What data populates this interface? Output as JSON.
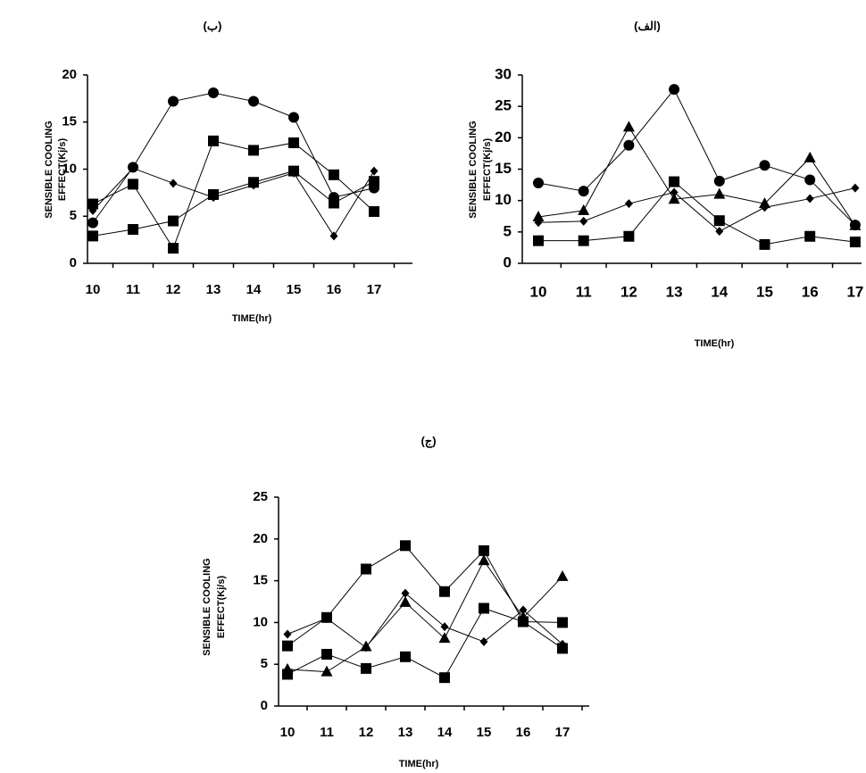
{
  "chart_data": [
    {
      "type": "line",
      "title": "(ب)",
      "ylabel": [
        "SENSIBLE COOLING",
        "EFFECT(Kj/s)"
      ],
      "xlabel": "TIME(hr)",
      "categories": [
        "10",
        "11",
        "12",
        "13",
        "14",
        "15",
        "16",
        "17"
      ],
      "ylim": [
        0,
        20
      ],
      "yticks": [
        0,
        5,
        10,
        15,
        20
      ],
      "series": [
        {
          "marker": "circle",
          "color": "#000000",
          "values": [
            4.3,
            10.2,
            17.2,
            18.1,
            17.2,
            15.5,
            7.0,
            8.0
          ]
        },
        {
          "marker": "square",
          "color": "#000000",
          "values": [
            6.3,
            8.4,
            1.6,
            13.0,
            12.0,
            12.8,
            9.4,
            5.5
          ]
        },
        {
          "marker": "diamond",
          "color": "#000000",
          "values": [
            5.6,
            10.1,
            8.5,
            7.0,
            8.3,
            9.6,
            2.9,
            9.8
          ]
        },
        {
          "marker": "square",
          "color": "#000000",
          "values": [
            2.9,
            3.6,
            4.5,
            7.3,
            8.6,
            9.8,
            6.4,
            8.7
          ]
        }
      ]
    },
    {
      "type": "line",
      "title": "(الف)",
      "ylabel": [
        "SENSIBLE COOLING",
        "EFFECT(Kj/s)"
      ],
      "xlabel": "TIME(hr)",
      "categories": [
        "10",
        "11",
        "12",
        "13",
        "14",
        "15",
        "16",
        "17"
      ],
      "ylim": [
        0,
        30
      ],
      "yticks": [
        0,
        5,
        10,
        15,
        20,
        25,
        30
      ],
      "series": [
        {
          "marker": "circle",
          "color": "#000000",
          "values": [
            12.8,
            11.5,
            18.8,
            27.7,
            13.1,
            15.6,
            13.3,
            6.1
          ]
        },
        {
          "marker": "triangle",
          "color": "#000000",
          "values": [
            7.4,
            8.4,
            21.7,
            10.2,
            11.0,
            9.5,
            16.8,
            6.0
          ]
        },
        {
          "marker": "diamond",
          "color": "#000000",
          "values": [
            6.5,
            6.7,
            9.5,
            11.3,
            5.1,
            8.9,
            10.3,
            12.0
          ]
        },
        {
          "marker": "square",
          "color": "#000000",
          "values": [
            3.6,
            3.6,
            4.3,
            13.0,
            6.8,
            3.0,
            4.3,
            3.4
          ]
        }
      ]
    },
    {
      "type": "line",
      "title": "(ج)",
      "ylabel": [
        "SENSIBLE COOLING",
        "EFFECT(Kj/s)"
      ],
      "xlabel": "TIME(hr)",
      "categories": [
        "10",
        "11",
        "12",
        "13",
        "14",
        "15",
        "16",
        "17"
      ],
      "ylim": [
        0,
        25
      ],
      "yticks": [
        0,
        5,
        10,
        15,
        20,
        25
      ],
      "series": [
        {
          "marker": "square",
          "color": "#000000",
          "values": [
            7.2,
            10.6,
            16.4,
            19.2,
            13.7,
            18.6,
            10.1,
            6.9
          ]
        },
        {
          "marker": "triangle",
          "color": "#000000",
          "values": [
            4.4,
            4.1,
            7.1,
            12.4,
            8.1,
            17.4,
            10.6,
            15.5
          ]
        },
        {
          "marker": "diamond",
          "color": "#000000",
          "values": [
            8.6,
            10.5,
            7.0,
            13.5,
            9.5,
            7.7,
            11.5,
            7.4
          ]
        },
        {
          "marker": "square",
          "color": "#000000",
          "values": [
            3.8,
            6.2,
            4.5,
            5.9,
            3.4,
            11.7,
            10.1,
            10.0
          ]
        }
      ]
    }
  ]
}
